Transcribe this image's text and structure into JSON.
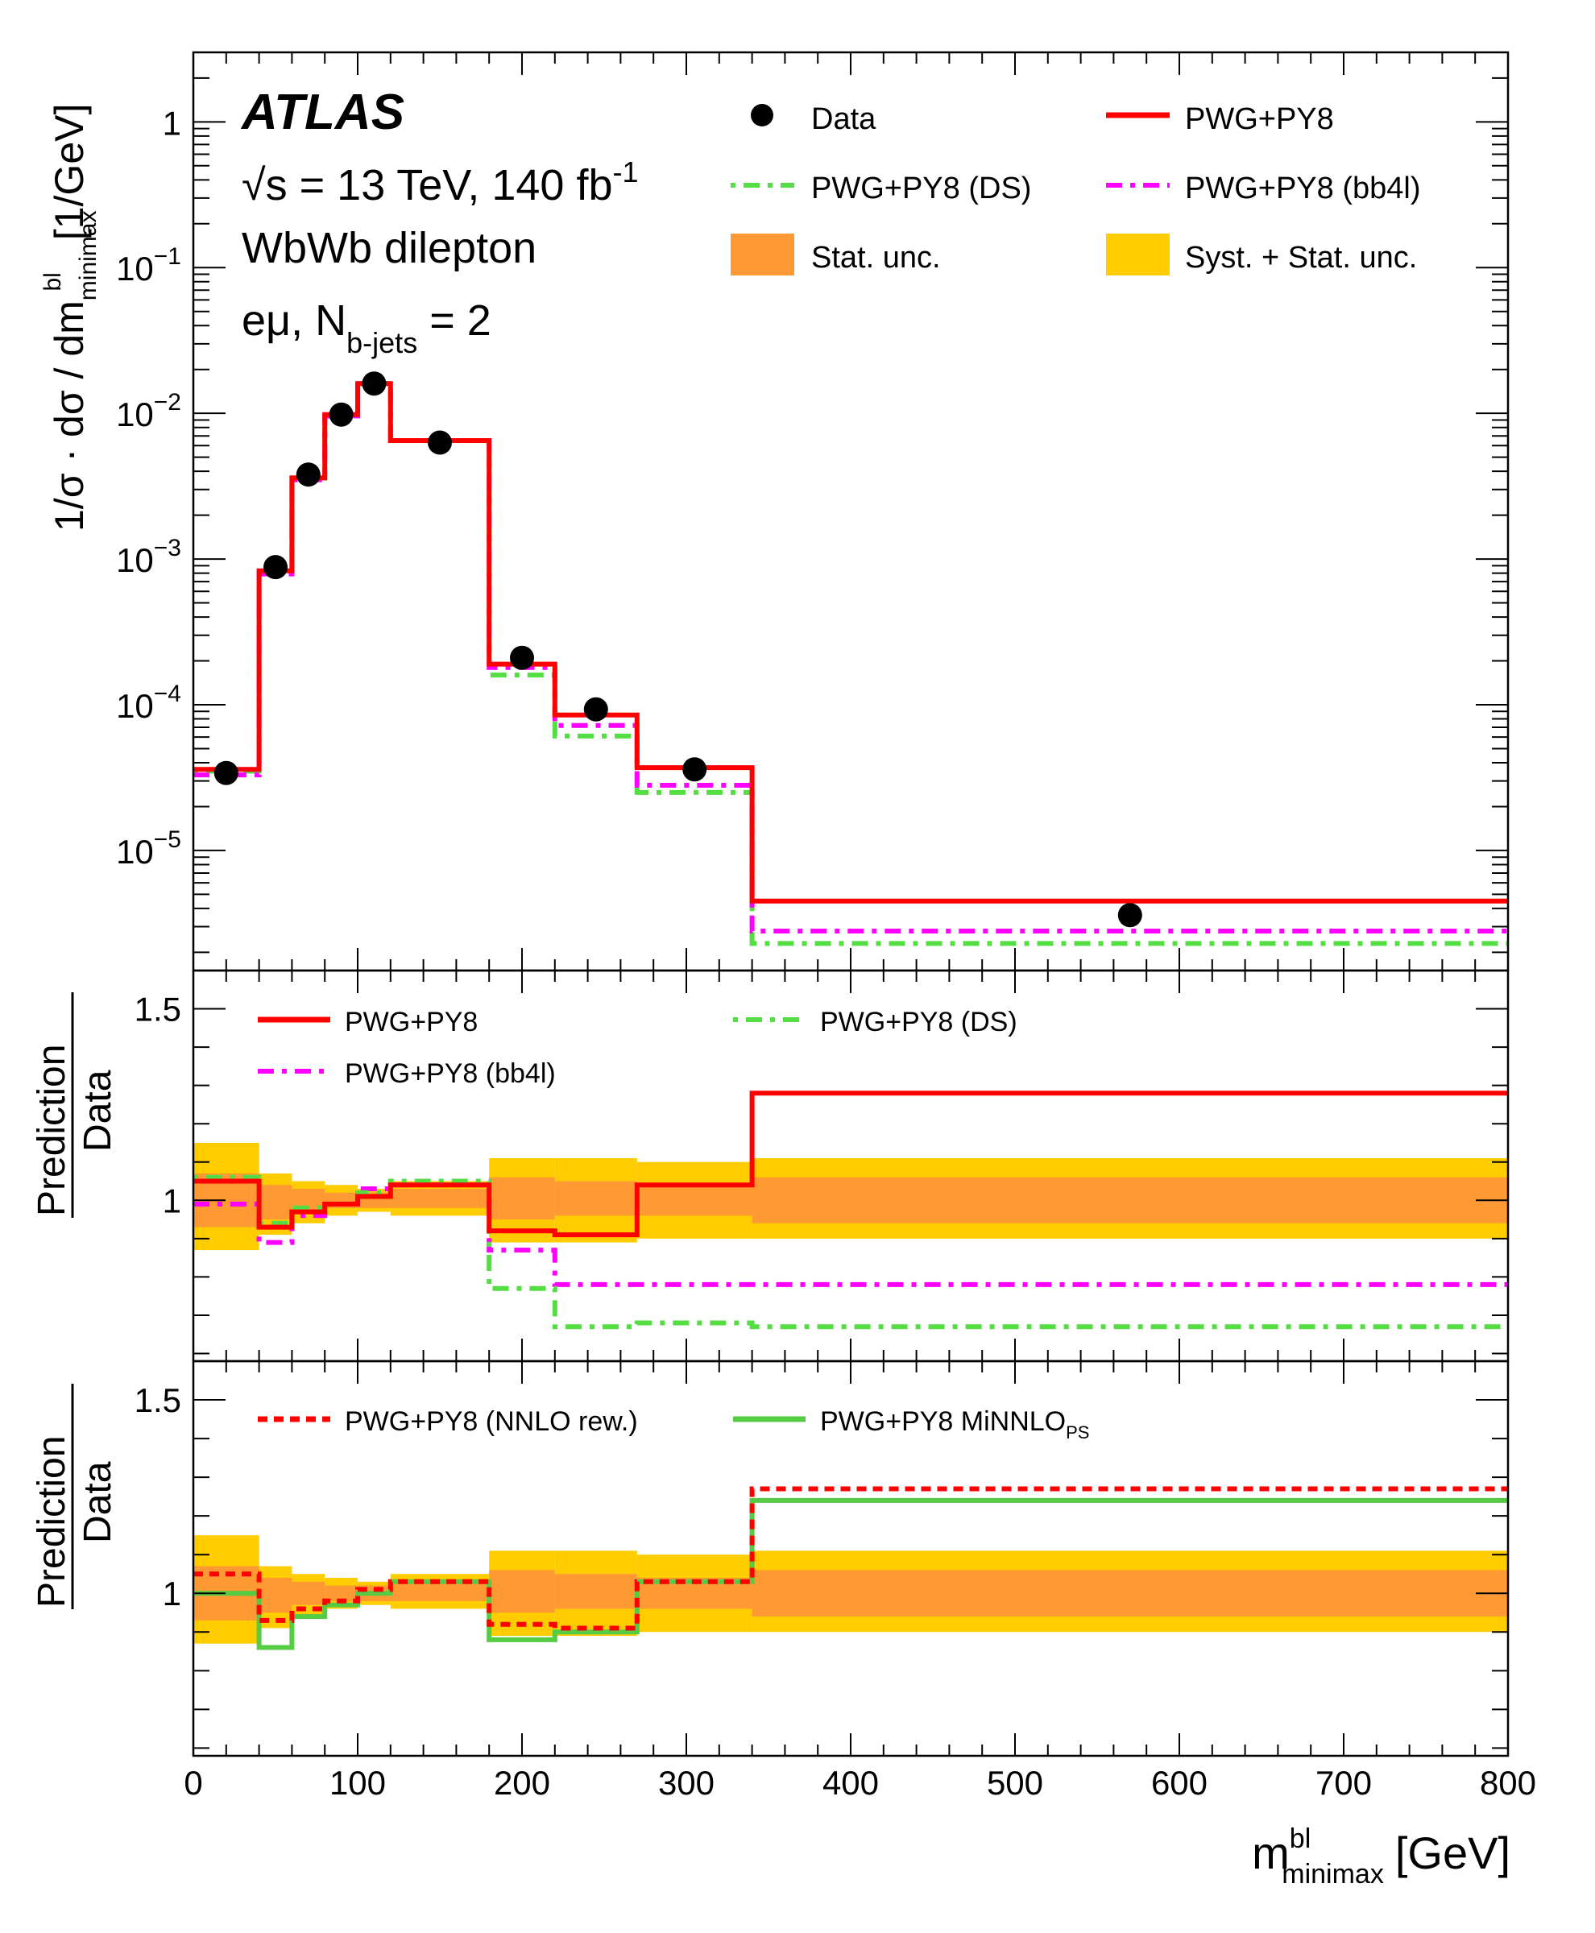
{
  "labels": {
    "atlas": "ATLAS",
    "energy_sqrt": "√s",
    "energy_rest": " = 13 TeV, 140 fb",
    "energy_sup": "-1",
    "process": "WbWb dilepton",
    "channel_a": "eμ, N",
    "channel_sub": "b-jets",
    "channel_b": " = 2",
    "ylabel_main": "1/σ · dσ / dm",
    "ylabel_main_sup": "bl",
    "ylabel_main_sub": "minimax",
    "ylabel_main_unit": "[1/GeV]",
    "ratio_num": "Prediction",
    "ratio_den": "Data",
    "xlabel": "m",
    "xlabel_sup": "bl",
    "xlabel_sub": "minimax",
    "xlabel_unit": "[GeV]"
  },
  "legend_main": {
    "data": "Data",
    "pwg": "PWG+PY8",
    "ds": "PWG+PY8 (DS)",
    "bb4l": "PWG+PY8 (bb4l)",
    "stat": "Stat. unc.",
    "syst": "Syst. + Stat. unc."
  },
  "legend_r1": {
    "pwg": "PWG+PY8",
    "ds": "PWG+PY8 (DS)",
    "bb4l": "PWG+PY8 (bb4l)"
  },
  "legend_r2": {
    "nnlo": "PWG+PY8 (NNLO rew.)",
    "minnlo": "PWG+PY8 MiNNLO",
    "minnlo_sub": "PS"
  },
  "colors": {
    "data": "#000000",
    "pwg": "#ff0000",
    "ds": "#55dd44",
    "bb4l": "#ff00ff",
    "nnlo": "#ff0000",
    "minnlo": "#55cc44",
    "stat": "#ff9933",
    "syst": "#ffcc00"
  },
  "chart_data": [
    {
      "type": "line",
      "panel": "main",
      "scale": "log",
      "xlim": [
        0,
        800
      ],
      "ylim": [
        1.5e-06,
        3
      ],
      "bin_edges": [
        0,
        40,
        60,
        80,
        100,
        120,
        180,
        220,
        270,
        340,
        800
      ],
      "y_ticks": [
        "1",
        "10^{-1}",
        "10^{-2}",
        "10^{-3}",
        "10^{-4}",
        "10^{-5}"
      ],
      "data_points": {
        "x": [
          20,
          50,
          70,
          90,
          110,
          150,
          200,
          245,
          305,
          570
        ],
        "y": [
          3.4e-05,
          0.00088,
          0.0038,
          0.0098,
          0.016,
          0.0063,
          0.00021,
          9.3e-05,
          3.6e-05,
          3.6e-06
        ]
      },
      "series": [
        {
          "name": "PWG+PY8",
          "style": "solid",
          "values": [
            3.6e-05,
            0.00083,
            0.0036,
            0.0098,
            0.016,
            0.0065,
            0.00019,
            8.5e-05,
            3.7e-05,
            4.5e-06
          ]
        },
        {
          "name": "PWG+PY8 (DS)",
          "style": "dotted",
          "values": [
            3.5e-05,
            0.00082,
            0.0036,
            0.0097,
            0.016,
            0.0065,
            0.00016,
            6.1e-05,
            2.5e-05,
            2.3e-06
          ]
        },
        {
          "name": "PWG+PY8 (bb4l)",
          "style": "dashdot",
          "values": [
            3.3e-05,
            0.00079,
            0.0035,
            0.0096,
            0.016,
            0.0065,
            0.00018,
            7.2e-05,
            2.8e-05,
            2.8e-06
          ]
        }
      ]
    },
    {
      "type": "line",
      "panel": "ratio1",
      "xlim": [
        0,
        800
      ],
      "ylim": [
        0.58,
        1.6
      ],
      "y_ticks": [
        "1",
        "1.5"
      ],
      "bin_edges": [
        0,
        40,
        60,
        80,
        100,
        120,
        180,
        220,
        270,
        340,
        800
      ],
      "stat_band": [
        [
          0.93,
          1.07
        ],
        [
          0.95,
          1.04
        ],
        [
          0.97,
          1.03
        ],
        [
          0.98,
          1.02
        ],
        [
          0.98,
          1.02
        ],
        [
          0.98,
          1.03
        ],
        [
          0.95,
          1.06
        ],
        [
          0.96,
          1.05
        ],
        [
          0.96,
          1.04
        ],
        [
          0.94,
          1.06
        ]
      ],
      "syst_band": [
        [
          0.87,
          1.15
        ],
        [
          0.91,
          1.07
        ],
        [
          0.94,
          1.05
        ],
        [
          0.96,
          1.04
        ],
        [
          0.97,
          1.03
        ],
        [
          0.96,
          1.05
        ],
        [
          0.89,
          1.11
        ],
        [
          0.89,
          1.11
        ],
        [
          0.9,
          1.1
        ],
        [
          0.9,
          1.11
        ]
      ],
      "series": [
        {
          "name": "PWG+PY8",
          "style": "solid",
          "values": [
            1.05,
            0.93,
            0.97,
            0.99,
            1.01,
            1.04,
            0.92,
            0.91,
            1.04,
            1.28
          ]
        },
        {
          "name": "PWG+PY8 (DS)",
          "style": "dotted",
          "values": [
            1.06,
            0.94,
            0.98,
            0.99,
            1.02,
            1.05,
            0.77,
            0.67,
            0.68,
            0.67
          ]
        },
        {
          "name": "PWG+PY8 (bb4l)",
          "style": "dashdot",
          "values": [
            0.99,
            0.89,
            0.96,
            0.99,
            1.03,
            1.04,
            0.87,
            0.78,
            0.78,
            0.78
          ]
        }
      ]
    },
    {
      "type": "line",
      "panel": "ratio2",
      "xlim": [
        0,
        800
      ],
      "ylim": [
        0.58,
        1.6
      ],
      "y_ticks": [
        "1",
        "1.5"
      ],
      "bin_edges": [
        0,
        40,
        60,
        80,
        100,
        120,
        180,
        220,
        270,
        340,
        800
      ],
      "stat_band": [
        [
          0.93,
          1.07
        ],
        [
          0.95,
          1.04
        ],
        [
          0.97,
          1.03
        ],
        [
          0.98,
          1.02
        ],
        [
          0.98,
          1.02
        ],
        [
          0.98,
          1.03
        ],
        [
          0.95,
          1.06
        ],
        [
          0.96,
          1.05
        ],
        [
          0.96,
          1.04
        ],
        [
          0.94,
          1.06
        ]
      ],
      "syst_band": [
        [
          0.87,
          1.15
        ],
        [
          0.91,
          1.07
        ],
        [
          0.94,
          1.05
        ],
        [
          0.96,
          1.04
        ],
        [
          0.97,
          1.03
        ],
        [
          0.96,
          1.05
        ],
        [
          0.89,
          1.11
        ],
        [
          0.89,
          1.11
        ],
        [
          0.9,
          1.1
        ],
        [
          0.9,
          1.11
        ]
      ],
      "series": [
        {
          "name": "PWG+PY8 (NNLO rew.)",
          "style": "dashed",
          "values": [
            1.05,
            0.93,
            0.96,
            0.98,
            1.01,
            1.03,
            0.92,
            0.91,
            1.03,
            1.27
          ]
        },
        {
          "name": "PWG+PY8 MiNNLO_PS",
          "style": "solid",
          "values": [
            1.0,
            0.86,
            0.94,
            0.97,
            1.0,
            1.03,
            0.88,
            0.9,
            1.03,
            1.24
          ]
        }
      ]
    }
  ],
  "x_axis": {
    "ticks": [
      0,
      100,
      200,
      300,
      400,
      500,
      600,
      700,
      800
    ]
  }
}
